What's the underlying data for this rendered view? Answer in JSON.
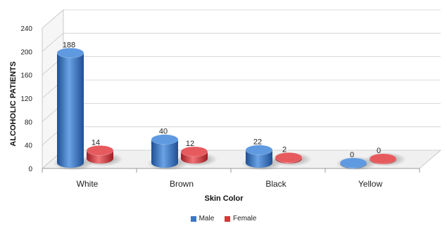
{
  "chart_data": {
    "type": "bar",
    "categories": [
      "White",
      "Brown",
      "Black",
      "Yellow"
    ],
    "series": [
      {
        "name": "Male",
        "values": [
          188,
          40,
          22,
          0
        ],
        "color": "#3a78c4"
      },
      {
        "name": "Female",
        "values": [
          14,
          12,
          2,
          0
        ],
        "color": "#d9363a"
      }
    ],
    "xlabel": "Skin Color",
    "ylabel": "ALCOHOLIC PATIENTS",
    "ylim": [
      0,
      240
    ],
    "yticks": [
      0,
      40,
      80,
      120,
      160,
      200,
      240
    ],
    "grid": true,
    "legend_position": "bottom",
    "style": "3d-cylinder"
  }
}
